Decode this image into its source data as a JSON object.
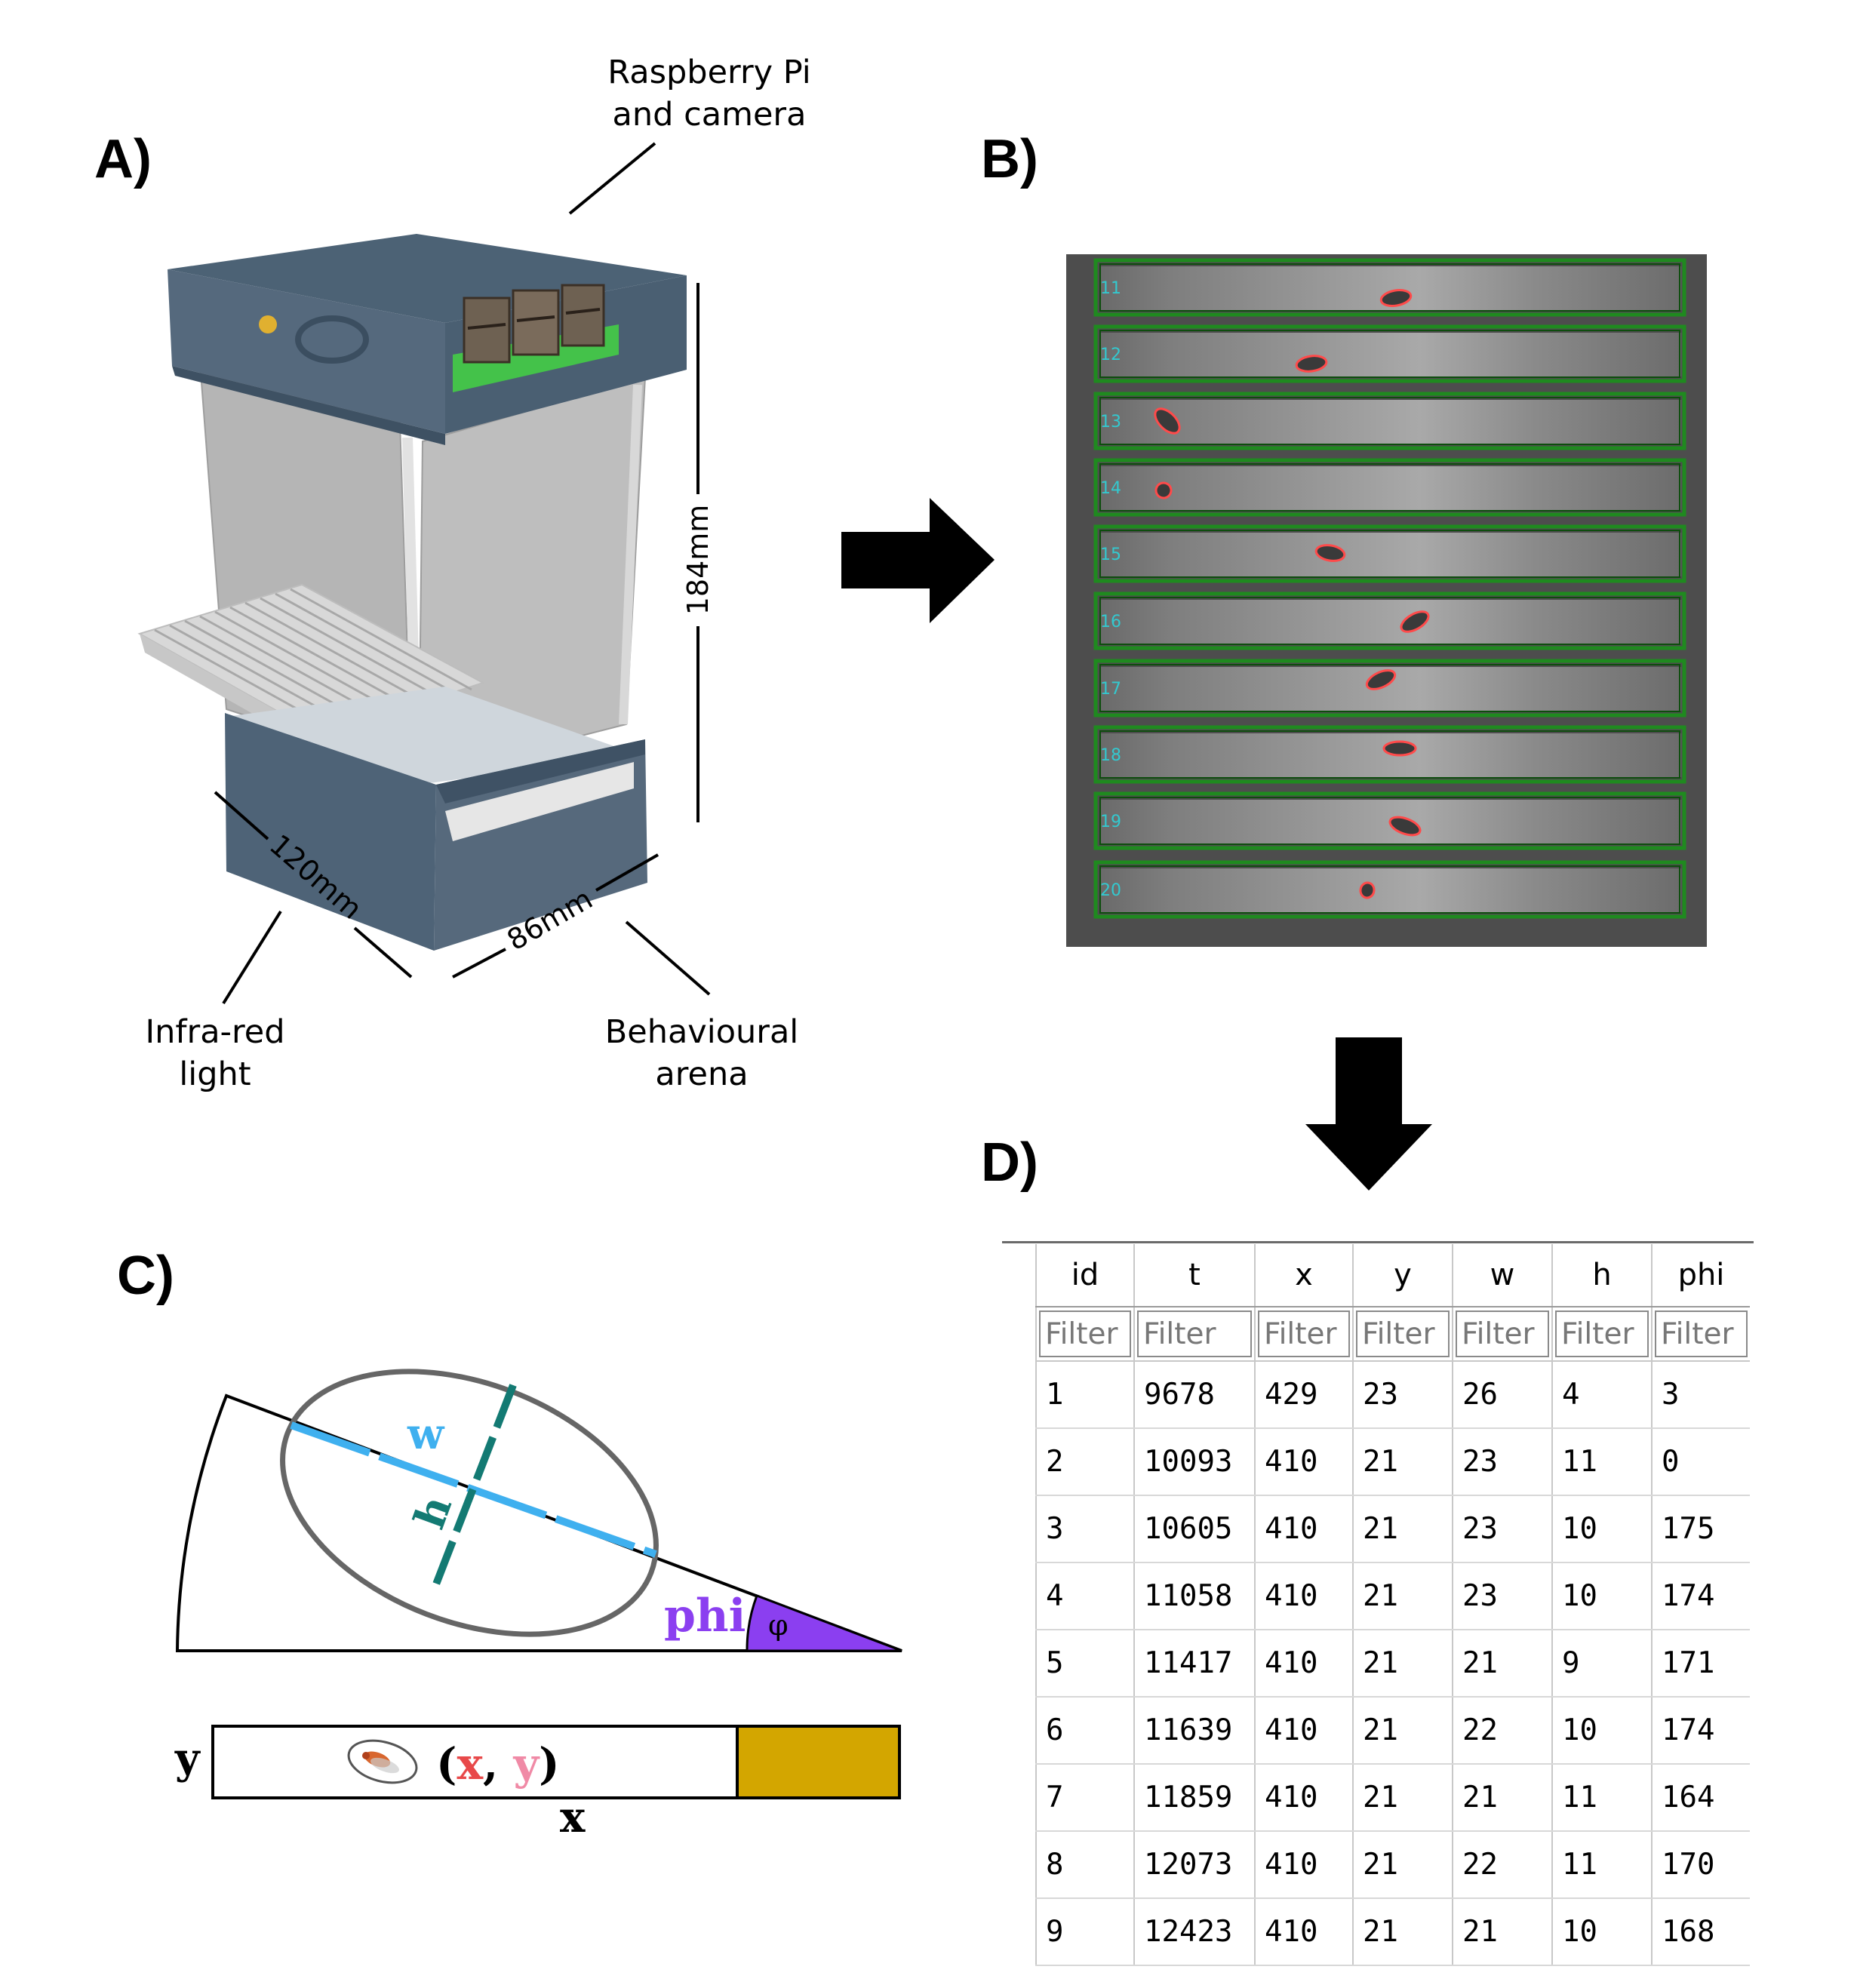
{
  "panels": {
    "a": "A)",
    "b": "B)",
    "c": "C)",
    "d": "D)"
  },
  "panel_a": {
    "callout_camera_line1": "Raspberry Pi",
    "callout_camera_line2": "and camera",
    "callout_ir_line1": "Infra-red",
    "callout_ir_line2": "light",
    "callout_arena_line1": "Behavioural",
    "callout_arena_line2": "arena",
    "dim_height": "184mm",
    "dim_depth": "120mm",
    "dim_width": "86mm"
  },
  "panel_b": {
    "roi_labels": [
      "11",
      "12",
      "13",
      "14",
      "15",
      "16",
      "17",
      "18",
      "19",
      "20"
    ]
  },
  "panel_c": {
    "w_label": "w",
    "h_label": "h",
    "phi_label": "phi",
    "phi_symbol": "φ",
    "y_axis": "y",
    "x_axis": "x",
    "coord_open": "(",
    "coord_x": "x",
    "coord_comma": ",",
    "coord_y": "y",
    "coord_close": ")",
    "colors": {
      "w": "#3fb0ef",
      "h": "#137a73",
      "phi": "#8b3ff0",
      "coord_x": "#e8494a",
      "coord_y": "#f08aa6",
      "food": "#d3a600"
    }
  },
  "panel_d": {
    "columns": [
      "id",
      "t",
      "x",
      "y",
      "w",
      "h",
      "phi"
    ],
    "filter_placeholder": "Filter",
    "rows": [
      [
        "1",
        "9678",
        "429",
        "23",
        "26",
        "4",
        "3"
      ],
      [
        "2",
        "10093",
        "410",
        "21",
        "23",
        "11",
        "0"
      ],
      [
        "3",
        "10605",
        "410",
        "21",
        "23",
        "10",
        "175"
      ],
      [
        "4",
        "11058",
        "410",
        "21",
        "23",
        "10",
        "174"
      ],
      [
        "5",
        "11417",
        "410",
        "21",
        "21",
        "9",
        "171"
      ],
      [
        "6",
        "11639",
        "410",
        "21",
        "22",
        "10",
        "174"
      ],
      [
        "7",
        "11859",
        "410",
        "21",
        "21",
        "11",
        "164"
      ],
      [
        "8",
        "12073",
        "410",
        "21",
        "22",
        "11",
        "170"
      ],
      [
        "9",
        "12423",
        "410",
        "21",
        "21",
        "10",
        "168"
      ]
    ]
  }
}
